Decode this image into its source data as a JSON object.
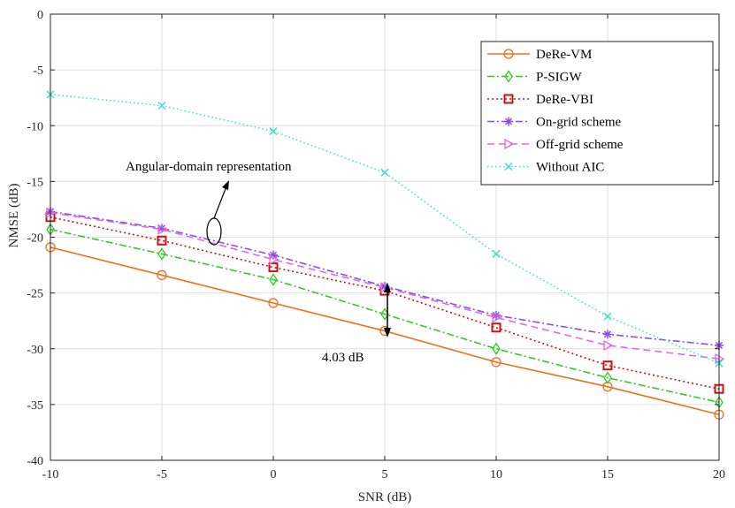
{
  "chart_data": {
    "type": "line",
    "title": "",
    "xlabel": "SNR (dB)",
    "ylabel": "NMSE (dB)",
    "xlim": [
      -10,
      20
    ],
    "ylim": [
      -40,
      0
    ],
    "xticks": [
      -10,
      -5,
      0,
      5,
      10,
      15,
      20
    ],
    "yticks": [
      0,
      -5,
      -10,
      -15,
      -20,
      -25,
      -30,
      -35,
      -40
    ],
    "x_tick_labels": [
      "-10",
      "-5",
      "0",
      "5",
      "10",
      "15",
      "20"
    ],
    "y_tick_labels": [
      "0",
      "-5",
      "-10",
      "-15",
      "-20",
      "-25",
      "-30",
      "-35",
      "-40"
    ],
    "grid": true,
    "legend_position": "top-right",
    "x": [
      -10,
      -5,
      0,
      5,
      10,
      15,
      20
    ],
    "series": [
      {
        "name": "DeRe-VM",
        "values": [
          -20.9,
          -23.4,
          -25.9,
          -28.4,
          -31.2,
          -33.4,
          -35.9
        ],
        "color": "#ED6F1B",
        "dash": "",
        "marker": "circle"
      },
      {
        "name": "P-SIGW",
        "values": [
          -19.3,
          -21.5,
          -23.8,
          -26.9,
          -30.0,
          -32.6,
          -34.8
        ],
        "color": "#2ECC1F",
        "dash": "8,3,2,3",
        "marker": "diamond"
      },
      {
        "name": "DeRe-VBI",
        "values": [
          -18.2,
          -20.3,
          -22.7,
          -24.8,
          -28.1,
          -31.5,
          -33.6
        ],
        "color": "#CC1111",
        "dash": "2,3",
        "marker": "square"
      },
      {
        "name": "On-grid scheme",
        "values": [
          -17.7,
          -19.2,
          -21.6,
          -24.4,
          -27.0,
          -28.7,
          -29.7
        ],
        "color": "#8A4DEB",
        "dash": "8,3,2,3",
        "marker": "asterisk"
      },
      {
        "name": "Off-grid scheme",
        "values": [
          -17.8,
          -19.3,
          -22.0,
          -24.5,
          -27.2,
          -29.7,
          -30.9
        ],
        "color": "#E06BE0",
        "dash": "8,5",
        "marker": "triangle-right"
      },
      {
        "name": "Without AIC",
        "values": [
          -7.2,
          -8.2,
          -10.5,
          -14.2,
          -21.5,
          -27.1,
          -31.3
        ],
        "color": "#3EE0C8",
        "dash": "1.5,3",
        "marker": "x"
      }
    ],
    "annotations": [
      {
        "text": "Angular-domain representation"
      },
      {
        "text": "4.03 dB"
      }
    ]
  }
}
